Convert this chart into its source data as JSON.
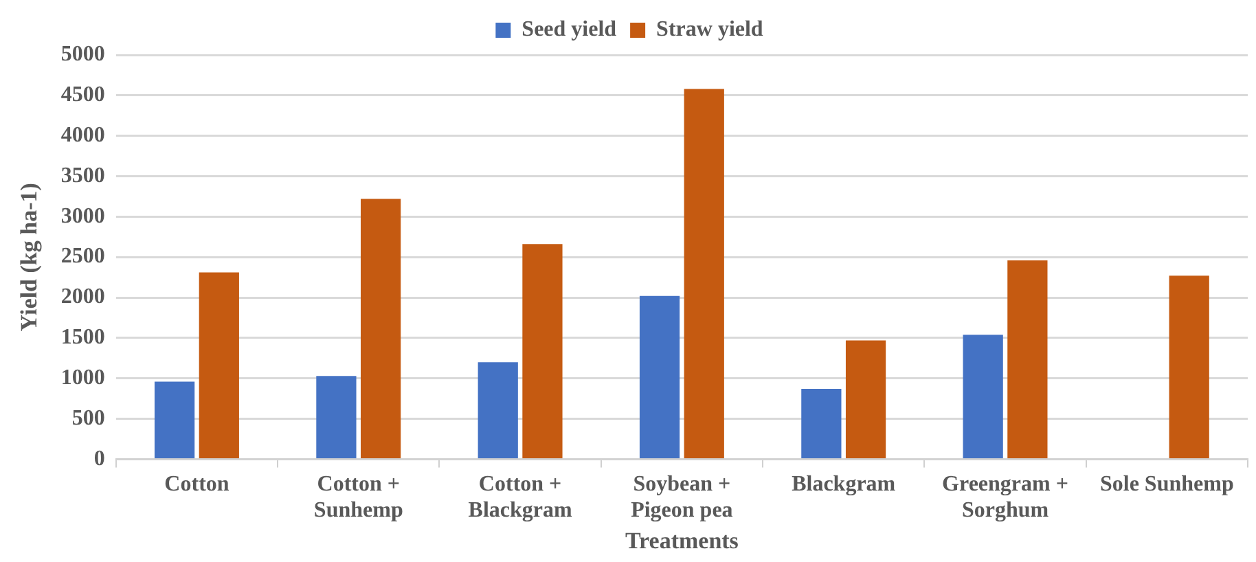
{
  "chart_data": {
    "type": "bar",
    "xlabel": "Treatments",
    "ylabel": "Yield (kg ha-1)",
    "categories": [
      "Cotton",
      "Cotton + Sunhemp",
      "Cotton + Blackgram",
      "Soybean + Pigeon pea",
      "Blackgram",
      "Greengram + Sorghum",
      "Sole Sunhemp"
    ],
    "series": [
      {
        "name": "Seed yield",
        "color": "#4472c4",
        "values": [
          960,
          1030,
          1200,
          2020,
          870,
          1540,
          null
        ]
      },
      {
        "name": "Straw yield",
        "color": "#c55a11",
        "values": [
          2310,
          3220,
          2660,
          4580,
          1470,
          2460,
          2270
        ]
      }
    ],
    "ylim": [
      0,
      5000
    ],
    "yticks": [
      0,
      500,
      1000,
      1500,
      2000,
      2500,
      3000,
      3500,
      4000,
      4500,
      5000
    ],
    "grid": "y",
    "legend": "top"
  }
}
